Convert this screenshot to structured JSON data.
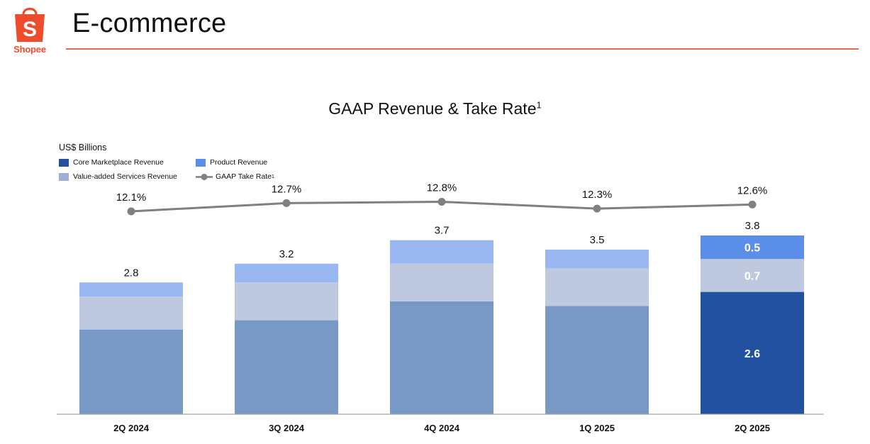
{
  "header": {
    "logo_text": "Shopee",
    "logo_glyph": "S",
    "title": "E-commerce",
    "brand_color": "#ee4d2d"
  },
  "chart_data": {
    "type": "bar",
    "stacked": true,
    "title": "GAAP Revenue & Take Rate",
    "title_footnote": "1",
    "ylabel": "US$ Billions",
    "categories": [
      "2Q 2024",
      "3Q 2024",
      "4Q 2024",
      "1Q 2025",
      "2Q 2025"
    ],
    "series": [
      {
        "name": "Core Marketplace Revenue",
        "values": [
          1.8,
          2.0,
          2.4,
          2.3,
          2.6
        ],
        "color": "#7898c6",
        "highlight_color": "#2251a0"
      },
      {
        "name": "Value-added Services Revenue",
        "values": [
          0.7,
          0.8,
          0.8,
          0.8,
          0.7
        ],
        "color": "#bec9e0",
        "highlight_color": "#bec9e0"
      },
      {
        "name": "Product Revenue",
        "values": [
          0.3,
          0.4,
          0.5,
          0.4,
          0.5
        ],
        "color": "#99b8f2",
        "highlight_color": "#5b8ee8"
      }
    ],
    "totals": [
      "2.8",
      "3.2",
      "3.7",
      "3.5",
      "3.8"
    ],
    "segment_labels_last": [
      "2.6",
      "0.7",
      "0.5"
    ],
    "line_series": {
      "name": "GAAP Take Rate",
      "footnote": "1",
      "values": [
        12.1,
        12.7,
        12.8,
        12.3,
        12.6
      ],
      "labels": [
        "12.1%",
        "12.7%",
        "12.8%",
        "12.3%",
        "12.6%"
      ],
      "color": "#808080"
    },
    "ylim": [
      0,
      4.0
    ],
    "legend": [
      "Core Marketplace Revenue",
      "Product Revenue",
      "Value-added Services Revenue",
      "GAAP Take Rate"
    ],
    "legend_position": "top-left"
  }
}
